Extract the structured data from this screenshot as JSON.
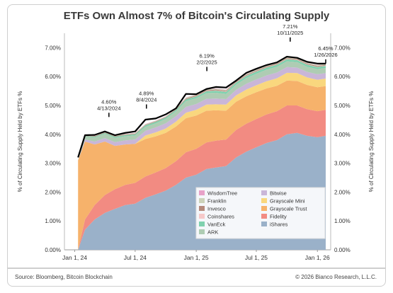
{
  "page": {
    "title": "ETFs Own Almost 7% of Bitcoin's Circulating Supply",
    "source": "Source: Bloomberg, Bitcoin Blockchain",
    "copyright": "© 2026 Bianco Research, L.L.C."
  },
  "chart_data": {
    "type": "area",
    "title": "ETFs Own Almost 7% of Bitcoin's Circulating Supply",
    "ylabel": "% of Circulating Supply Held by ETFs %",
    "ylim": [
      0,
      7.5
    ],
    "yticks": [
      "0.00%",
      "1.00%",
      "2.00%",
      "3.00%",
      "4.00%",
      "5.00%",
      "6.00%",
      "7.00%"
    ],
    "xticks": [
      "Jan 1, 24",
      "Jul 1, 24",
      "Jan 1, 25",
      "Jul 1, 25",
      "Jan 1, 26"
    ],
    "x": [
      "2024-01-11",
      "2024-02-01",
      "2024-03-01",
      "2024-04-01",
      "2024-05-01",
      "2024-06-01",
      "2024-07-01",
      "2024-08-01",
      "2024-09-01",
      "2024-10-01",
      "2024-11-01",
      "2024-12-01",
      "2025-01-01",
      "2025-02-01",
      "2025-03-01",
      "2025-04-01",
      "2025-05-01",
      "2025-06-01",
      "2025-07-01",
      "2025-08-01",
      "2025-09-01",
      "2025-10-01",
      "2025-11-01",
      "2025-12-01",
      "2026-01-01",
      "2026-01-26"
    ],
    "series": [
      {
        "name": "iShares",
        "color": "#9ab1c9",
        "values": [
          0.0,
          0.7,
          1.05,
          1.28,
          1.42,
          1.55,
          1.6,
          1.8,
          1.92,
          2.05,
          2.25,
          2.5,
          2.6,
          2.8,
          2.85,
          2.9,
          3.2,
          3.4,
          3.55,
          3.7,
          3.8,
          4.0,
          4.05,
          3.95,
          3.9,
          3.95
        ]
      },
      {
        "name": "Fidelity",
        "color": "#f28b82",
        "values": [
          0.0,
          0.35,
          0.5,
          0.62,
          0.68,
          0.7,
          0.72,
          0.74,
          0.76,
          0.78,
          0.82,
          0.88,
          0.9,
          0.92,
          0.93,
          0.92,
          0.95,
          0.97,
          0.98,
          0.99,
          1.0,
          1.0,
          0.95,
          0.92,
          0.9,
          0.9
        ]
      },
      {
        "name": "Grayscale Trust",
        "color": "#f6b26b",
        "values": [
          3.1,
          2.7,
          2.1,
          1.85,
          1.5,
          1.4,
          1.35,
          1.3,
          1.25,
          1.22,
          1.2,
          1.18,
          1.15,
          1.1,
          1.05,
          1.0,
          0.98,
          0.95,
          0.93,
          0.9,
          0.88,
          0.86,
          0.85,
          0.84,
          0.83,
          0.82
        ]
      },
      {
        "name": "Grayscale Mini",
        "color": "#f9d77e",
        "values": [
          0.0,
          0.0,
          0.0,
          0.0,
          0.0,
          0.0,
          0.0,
          0.12,
          0.14,
          0.15,
          0.17,
          0.19,
          0.2,
          0.21,
          0.21,
          0.21,
          0.22,
          0.23,
          0.24,
          0.25,
          0.26,
          0.27,
          0.27,
          0.26,
          0.26,
          0.26
        ]
      },
      {
        "name": "Bitwise",
        "color": "#c9b6d8",
        "values": [
          0.0,
          0.07,
          0.1,
          0.12,
          0.13,
          0.14,
          0.15,
          0.16,
          0.17,
          0.18,
          0.19,
          0.2,
          0.2,
          0.2,
          0.2,
          0.19,
          0.19,
          0.2,
          0.2,
          0.2,
          0.2,
          0.2,
          0.19,
          0.19,
          0.19,
          0.19
        ]
      },
      {
        "name": "ARK",
        "color": "#aeccb3",
        "values": [
          0.0,
          0.1,
          0.14,
          0.15,
          0.15,
          0.14,
          0.14,
          0.14,
          0.14,
          0.15,
          0.17,
          0.2,
          0.2,
          0.2,
          0.2,
          0.18,
          0.18,
          0.2,
          0.2,
          0.2,
          0.2,
          0.2,
          0.19,
          0.18,
          0.18,
          0.18
        ]
      },
      {
        "name": "VanEck",
        "color": "#7fd1ae",
        "values": [
          0.0,
          0.02,
          0.03,
          0.03,
          0.04,
          0.04,
          0.04,
          0.05,
          0.05,
          0.05,
          0.05,
          0.06,
          0.06,
          0.06,
          0.07,
          0.07,
          0.07,
          0.07,
          0.07,
          0.07,
          0.07,
          0.07,
          0.07,
          0.07,
          0.07,
          0.07
        ]
      },
      {
        "name": "Coinshares",
        "color": "#f6c9c9",
        "values": [
          0.0,
          0.0,
          0.0,
          0.0,
          0.0,
          0.0,
          0.0,
          0.0,
          0.0,
          0.0,
          0.0,
          0.0,
          0.01,
          0.01,
          0.01,
          0.01,
          0.01,
          0.01,
          0.01,
          0.01,
          0.01,
          0.01,
          0.01,
          0.01,
          0.01,
          0.01
        ]
      },
      {
        "name": "Invesco",
        "color": "#b58a7c",
        "values": [
          0.0,
          0.01,
          0.02,
          0.02,
          0.02,
          0.02,
          0.02,
          0.02,
          0.02,
          0.02,
          0.02,
          0.03,
          0.03,
          0.03,
          0.03,
          0.03,
          0.03,
          0.03,
          0.03,
          0.03,
          0.03,
          0.03,
          0.03,
          0.03,
          0.03,
          0.03
        ]
      },
      {
        "name": "Franklin",
        "color": "#cdd3ba",
        "values": [
          0.0,
          0.01,
          0.01,
          0.02,
          0.02,
          0.02,
          0.02,
          0.02,
          0.02,
          0.02,
          0.02,
          0.03,
          0.03,
          0.03,
          0.03,
          0.03,
          0.03,
          0.03,
          0.03,
          0.03,
          0.03,
          0.03,
          0.03,
          0.03,
          0.03,
          0.03
        ]
      },
      {
        "name": "WisdomTree",
        "color": "#e8a2c8",
        "values": [
          0.0,
          0.0,
          0.01,
          0.01,
          0.01,
          0.01,
          0.01,
          0.01,
          0.01,
          0.01,
          0.01,
          0.01,
          0.01,
          0.01,
          0.01,
          0.01,
          0.01,
          0.01,
          0.01,
          0.01,
          0.01,
          0.01,
          0.01,
          0.01,
          0.01,
          0.01
        ]
      }
    ],
    "total_line": {
      "color": "#000000",
      "values": [
        3.2,
        3.97,
        3.98,
        4.1,
        3.97,
        4.05,
        4.1,
        4.51,
        4.55,
        4.69,
        4.9,
        5.4,
        5.39,
        5.57,
        5.64,
        5.62,
        5.86,
        6.13,
        6.27,
        6.4,
        6.49,
        6.69,
        6.65,
        6.51,
        6.45,
        6.45
      ]
    },
    "annotations": [
      {
        "label": "4.60%",
        "date": "4/13/2024",
        "x": "2024-04-13",
        "y": 4.6
      },
      {
        "label": "4.89%",
        "date": "8/4/2024",
        "x": "2024-08-04",
        "y": 4.89
      },
      {
        "label": "6.19%",
        "date": "2/2/2025",
        "x": "2025-02-02",
        "y": 6.19
      },
      {
        "label": "7.21%",
        "date": "10/11/2025",
        "x": "2025-10-11",
        "y": 7.21
      },
      {
        "label": "6.45%",
        "date": "1/26/2026",
        "x": "2026-01-26",
        "y": 6.45
      }
    ],
    "legend_position": "bottom-right",
    "grid": false
  }
}
